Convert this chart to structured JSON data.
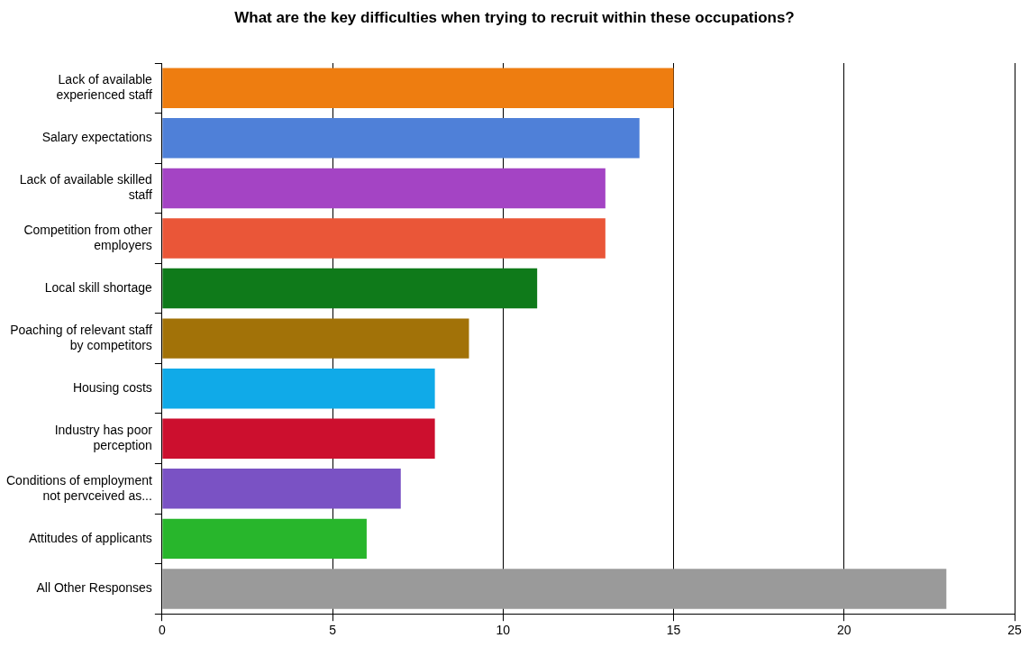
{
  "chart_data": {
    "type": "bar",
    "orientation": "horizontal",
    "title": "What are the key difficulties when trying to recruit within these occupations?",
    "categories": [
      "Lack of available experienced staff",
      "Salary expectations",
      "Lack of available skilled staff",
      "Competition from other employers",
      "Local skill shortage",
      "Poaching of relevant staff by competitors",
      "Housing costs",
      "Industry has poor perception",
      "Conditions of employment not pervceived as...",
      "Attitudes of applicants",
      "All Other Responses"
    ],
    "values": [
      15,
      14,
      13,
      13,
      11,
      9,
      8,
      8,
      7,
      6,
      23
    ],
    "colors": [
      "#ee7d10",
      "#4f80d8",
      "#a444c4",
      "#ea5638",
      "#0f7a1a",
      "#a27208",
      "#10aae8",
      "#cc0f2e",
      "#7a52c4",
      "#28b62c",
      "#9a9a9a"
    ],
    "xlim": [
      0,
      25
    ],
    "xticks": [
      0,
      5,
      10,
      15,
      20,
      25
    ],
    "grid": "x"
  }
}
